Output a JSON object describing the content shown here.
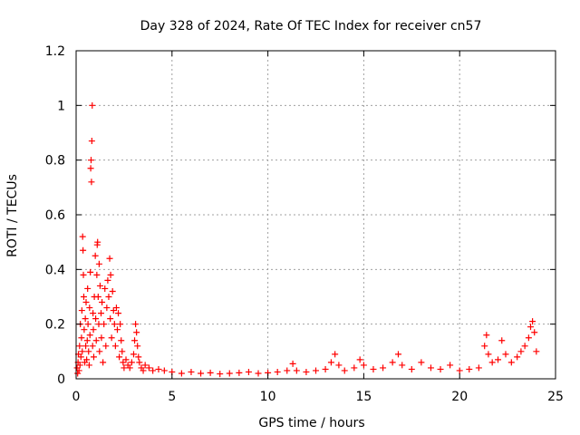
{
  "chart_data": {
    "type": "scatter",
    "title": "Day 328 of 2024, Rate Of TEC Index for receiver cn57",
    "xlabel": "GPS time / hours",
    "ylabel": "ROTI / TECUs",
    "xlim": [
      0,
      25
    ],
    "ylim": [
      0,
      1.2
    ],
    "x_ticks": [
      {
        "v": 0,
        "label": "0"
      },
      {
        "v": 5,
        "label": "5"
      },
      {
        "v": 10,
        "label": "10"
      },
      {
        "v": 15,
        "label": "15"
      },
      {
        "v": 20,
        "label": "20"
      },
      {
        "v": 25,
        "label": "25"
      }
    ],
    "y_ticks": [
      {
        "v": 0,
        "label": "0"
      },
      {
        "v": 0.2,
        "label": "0.2"
      },
      {
        "v": 0.4,
        "label": "0.4"
      },
      {
        "v": 0.6,
        "label": "0.6"
      },
      {
        "v": 0.8,
        "label": "0.8"
      },
      {
        "v": 1.0,
        "label": "1"
      },
      {
        "v": 1.2,
        "label": "1.2"
      }
    ],
    "grid": true,
    "marker": "+",
    "color": "#ff0000",
    "series": [
      {
        "points": [
          [
            0.05,
            0.04
          ],
          [
            0.08,
            0.02
          ],
          [
            0.1,
            0.06
          ],
          [
            0.12,
            0.09
          ],
          [
            0.15,
            0.03
          ],
          [
            0.18,
            0.12
          ],
          [
            0.2,
            0.05
          ],
          [
            0.22,
            0.2
          ],
          [
            0.25,
            0.08
          ],
          [
            0.28,
            0.15
          ],
          [
            0.3,
            0.25
          ],
          [
            0.32,
            0.1
          ],
          [
            0.34,
            0.52
          ],
          [
            0.36,
            0.47
          ],
          [
            0.38,
            0.38
          ],
          [
            0.4,
            0.3
          ],
          [
            0.42,
            0.18
          ],
          [
            0.45,
            0.06
          ],
          [
            0.48,
            0.22
          ],
          [
            0.5,
            0.12
          ],
          [
            0.52,
            0.28
          ],
          [
            0.55,
            0.07
          ],
          [
            0.58,
            0.14
          ],
          [
            0.6,
            0.33
          ],
          [
            0.62,
            0.2
          ],
          [
            0.65,
            0.1
          ],
          [
            0.68,
            0.05
          ],
          [
            0.7,
            0.26
          ],
          [
            0.72,
            0.16
          ],
          [
            0.74,
            0.39
          ],
          [
            0.76,
            0.77
          ],
          [
            0.78,
            0.8
          ],
          [
            0.8,
            0.72
          ],
          [
            0.82,
            0.87
          ],
          [
            0.84,
            1.0
          ],
          [
            0.86,
            0.12
          ],
          [
            0.88,
            0.24
          ],
          [
            0.9,
            0.18
          ],
          [
            0.92,
            0.08
          ],
          [
            0.95,
            0.3
          ],
          [
            1.0,
            0.45
          ],
          [
            1.02,
            0.22
          ],
          [
            1.05,
            0.14
          ],
          [
            1.08,
            0.38
          ],
          [
            1.1,
            0.49
          ],
          [
            1.12,
            0.5
          ],
          [
            1.15,
            0.3
          ],
          [
            1.18,
            0.2
          ],
          [
            1.2,
            0.42
          ],
          [
            1.22,
            0.1
          ],
          [
            1.25,
            0.34
          ],
          [
            1.3,
            0.24
          ],
          [
            1.32,
            0.15
          ],
          [
            1.35,
            0.28
          ],
          [
            1.4,
            0.06
          ],
          [
            1.45,
            0.2
          ],
          [
            1.5,
            0.33
          ],
          [
            1.55,
            0.12
          ],
          [
            1.6,
            0.26
          ],
          [
            1.65,
            0.36
          ],
          [
            1.7,
            0.3
          ],
          [
            1.75,
            0.44
          ],
          [
            1.78,
            0.22
          ],
          [
            1.8,
            0.38
          ],
          [
            1.85,
            0.15
          ],
          [
            1.9,
            0.32
          ],
          [
            1.95,
            0.25
          ],
          [
            2.0,
            0.2
          ],
          [
            2.05,
            0.12
          ],
          [
            2.1,
            0.26
          ],
          [
            2.15,
            0.18
          ],
          [
            2.2,
            0.24
          ],
          [
            2.25,
            0.08
          ],
          [
            2.3,
            0.2
          ],
          [
            2.35,
            0.14
          ],
          [
            2.4,
            0.1
          ],
          [
            2.45,
            0.06
          ],
          [
            2.5,
            0.04
          ],
          [
            2.6,
            0.07
          ],
          [
            2.7,
            0.05
          ],
          [
            2.8,
            0.04
          ],
          [
            2.9,
            0.06
          ],
          [
            3.0,
            0.09
          ],
          [
            3.05,
            0.14
          ],
          [
            3.1,
            0.2
          ],
          [
            3.15,
            0.17
          ],
          [
            3.2,
            0.12
          ],
          [
            3.25,
            0.08
          ],
          [
            3.3,
            0.06
          ],
          [
            3.4,
            0.04
          ],
          [
            3.5,
            0.03
          ],
          [
            3.6,
            0.05
          ],
          [
            3.8,
            0.04
          ],
          [
            4.0,
            0.03
          ],
          [
            4.3,
            0.035
          ],
          [
            4.6,
            0.03
          ],
          [
            5.0,
            0.025
          ],
          [
            5.5,
            0.02
          ],
          [
            6.0,
            0.025
          ],
          [
            6.5,
            0.02
          ],
          [
            7.0,
            0.022
          ],
          [
            7.5,
            0.018
          ],
          [
            8.0,
            0.02
          ],
          [
            8.5,
            0.022
          ],
          [
            9.0,
            0.025
          ],
          [
            9.5,
            0.02
          ],
          [
            10.0,
            0.022
          ],
          [
            10.5,
            0.025
          ],
          [
            11.0,
            0.03
          ],
          [
            11.3,
            0.055
          ],
          [
            11.5,
            0.03
          ],
          [
            12.0,
            0.025
          ],
          [
            12.5,
            0.03
          ],
          [
            13.0,
            0.035
          ],
          [
            13.3,
            0.06
          ],
          [
            13.5,
            0.09
          ],
          [
            13.7,
            0.05
          ],
          [
            14.0,
            0.03
          ],
          [
            14.5,
            0.04
          ],
          [
            14.8,
            0.07
          ],
          [
            15.0,
            0.05
          ],
          [
            15.5,
            0.035
          ],
          [
            16.0,
            0.04
          ],
          [
            16.5,
            0.06
          ],
          [
            16.8,
            0.09
          ],
          [
            17.0,
            0.05
          ],
          [
            17.5,
            0.035
          ],
          [
            18.0,
            0.06
          ],
          [
            18.5,
            0.04
          ],
          [
            19.0,
            0.035
          ],
          [
            19.5,
            0.05
          ],
          [
            20.0,
            0.03
          ],
          [
            20.5,
            0.035
          ],
          [
            21.0,
            0.04
          ],
          [
            21.3,
            0.12
          ],
          [
            21.4,
            0.16
          ],
          [
            21.5,
            0.09
          ],
          [
            21.7,
            0.06
          ],
          [
            22.0,
            0.07
          ],
          [
            22.2,
            0.14
          ],
          [
            22.4,
            0.09
          ],
          [
            22.7,
            0.06
          ],
          [
            23.0,
            0.08
          ],
          [
            23.2,
            0.1
          ],
          [
            23.4,
            0.12
          ],
          [
            23.6,
            0.15
          ],
          [
            23.7,
            0.19
          ],
          [
            23.8,
            0.21
          ],
          [
            23.9,
            0.17
          ],
          [
            24.0,
            0.1
          ]
        ]
      }
    ]
  }
}
